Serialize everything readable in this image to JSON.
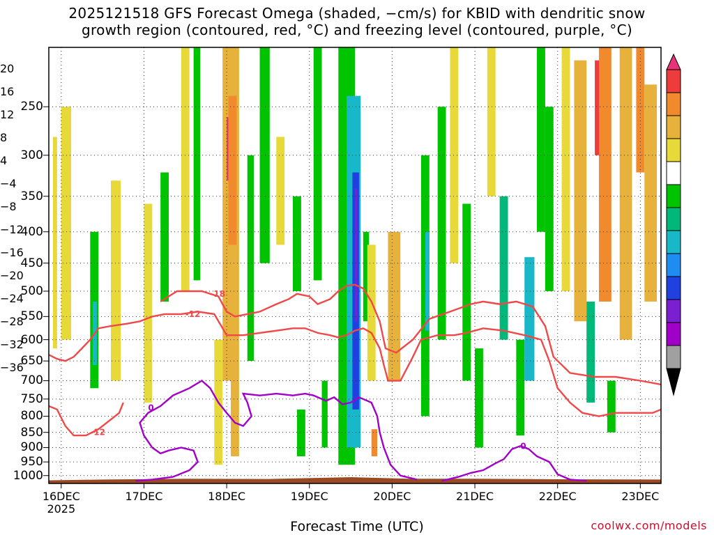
{
  "title_line1": "2025121518 GFS Forecast Omega (shaded, −cm/s) for KBID with dendritic snow",
  "title_line2": "growth region (contoured, red, °C) and freezing level (contoured, purple, °C)",
  "credit": "coolwx.com/models",
  "chart_data": {
    "type": "heatmap",
    "xlabel": "Forecast Time (UTC)",
    "x_ticks": [
      "16DEC",
      "17DEC",
      "18DEC",
      "19DEC",
      "20DEC",
      "21DEC",
      "22DEC",
      "23DEC"
    ],
    "x_year": "2025",
    "y_ticks": [
      250,
      300,
      350,
      400,
      450,
      500,
      550,
      600,
      650,
      700,
      750,
      800,
      850,
      900,
      950,
      1000
    ],
    "y_scale": "log-pressure, inverted",
    "y_range_hpa": [
      200,
      1030
    ],
    "x_range_days": [
      15.85,
      23.25
    ],
    "colorbar": {
      "labels": [
        "20",
        "16",
        "12",
        "8",
        "4",
        "−4",
        "−8",
        "−12",
        "−16",
        "−20",
        "−24",
        "−28",
        "−32",
        "−36"
      ],
      "bands": [
        {
          "min": 20,
          "max": 24,
          "color": "#e8337a"
        },
        {
          "min": 16,
          "max": 20,
          "color": "#ee3c3c"
        },
        {
          "min": 12,
          "max": 16,
          "color": "#f08a2c"
        },
        {
          "min": 8,
          "max": 12,
          "color": "#e6b23c"
        },
        {
          "min": 4,
          "max": 8,
          "color": "#e8d93a"
        },
        {
          "min": -4,
          "max": 4,
          "color": "#ffffff"
        },
        {
          "min": -8,
          "max": -4,
          "color": "#00c400"
        },
        {
          "min": -12,
          "max": -8,
          "color": "#00b87a"
        },
        {
          "min": -16,
          "max": -12,
          "color": "#18b8c8"
        },
        {
          "min": -20,
          "max": -16,
          "color": "#1e8cf0"
        },
        {
          "min": -24,
          "max": -20,
          "color": "#2040e0"
        },
        {
          "min": -28,
          "max": -24,
          "color": "#7a20d0"
        },
        {
          "min": -32,
          "max": -28,
          "color": "#a000c8"
        },
        {
          "min": -36,
          "max": -32,
          "color": "#a0a0a0"
        },
        {
          "min": -40,
          "max": -36,
          "color": "#000000"
        }
      ]
    },
    "omega_cells": [
      {
        "t0": 16.35,
        "t1": 16.45,
        "p0": 400,
        "p1": 720,
        "v": -8
      },
      {
        "t0": 16.38,
        "t1": 16.43,
        "p0": 520,
        "p1": 660,
        "v": -14
      },
      {
        "t0": 16.0,
        "t1": 16.12,
        "p0": 250,
        "p1": 600,
        "v": 6
      },
      {
        "t0": 15.9,
        "t1": 15.95,
        "p0": 280,
        "p1": 620,
        "v": 6
      },
      {
        "t0": 16.6,
        "t1": 16.72,
        "p0": 330,
        "p1": 700,
        "v": 7
      },
      {
        "t0": 17.0,
        "t1": 17.1,
        "p0": 360,
        "p1": 760,
        "v": 6
      },
      {
        "t0": 17.45,
        "t1": 17.55,
        "p0": 200,
        "p1": 500,
        "v": 6
      },
      {
        "t0": 17.2,
        "t1": 17.3,
        "p0": 320,
        "p1": 520,
        "v": -6
      },
      {
        "t0": 17.6,
        "t1": 17.68,
        "p0": 200,
        "p1": 480,
        "v": -6
      },
      {
        "t0": 17.95,
        "t1": 18.15,
        "p0": 200,
        "p1": 700,
        "v": 10
      },
      {
        "t0": 18.0,
        "t1": 18.08,
        "p0": 260,
        "p1": 330,
        "v": 22
      },
      {
        "t0": 18.02,
        "t1": 18.12,
        "p0": 240,
        "p1": 420,
        "v": 14
      },
      {
        "t0": 17.85,
        "t1": 17.95,
        "p0": 600,
        "p1": 960,
        "v": 6
      },
      {
        "t0": 18.05,
        "t1": 18.15,
        "p0": 700,
        "p1": 930,
        "v": 10
      },
      {
        "t0": 18.25,
        "t1": 18.33,
        "p0": 300,
        "p1": 650,
        "v": -6
      },
      {
        "t0": 18.4,
        "t1": 18.52,
        "p0": 200,
        "p1": 450,
        "v": -8
      },
      {
        "t0": 18.6,
        "t1": 18.7,
        "p0": 280,
        "p1": 420,
        "v": 6
      },
      {
        "t0": 18.8,
        "t1": 18.9,
        "p0": 350,
        "p1": 500,
        "v": -6
      },
      {
        "t0": 18.85,
        "t1": 18.95,
        "p0": 780,
        "p1": 930,
        "v": -6
      },
      {
        "t0": 19.05,
        "t1": 19.15,
        "p0": 200,
        "p1": 480,
        "v": -6
      },
      {
        "t0": 19.15,
        "t1": 19.22,
        "p0": 700,
        "p1": 900,
        "v": -6
      },
      {
        "t0": 19.35,
        "t1": 19.55,
        "p0": 200,
        "p1": 960,
        "v": -8
      },
      {
        "t0": 19.45,
        "t1": 19.62,
        "p0": 240,
        "p1": 900,
        "v": -14
      },
      {
        "t0": 19.52,
        "t1": 19.6,
        "p0": 320,
        "p1": 780,
        "v": -21
      },
      {
        "t0": 19.55,
        "t1": 19.58,
        "p0": 340,
        "p1": 560,
        "v": -26
      },
      {
        "t0": 19.65,
        "t1": 19.72,
        "p0": 400,
        "p1": 560,
        "v": -6
      },
      {
        "t0": 19.7,
        "t1": 19.8,
        "p0": 420,
        "p1": 700,
        "v": 6
      },
      {
        "t0": 19.75,
        "t1": 19.82,
        "p0": 840,
        "p1": 930,
        "v": 14
      },
      {
        "t0": 19.95,
        "t1": 20.1,
        "p0": 400,
        "p1": 700,
        "v": 10
      },
      {
        "t0": 20.35,
        "t1": 20.45,
        "p0": 300,
        "p1": 800,
        "v": -8
      },
      {
        "t0": 20.4,
        "t1": 20.45,
        "p0": 400,
        "p1": 580,
        "v": -14
      },
      {
        "t0": 20.55,
        "t1": 20.65,
        "p0": 250,
        "p1": 600,
        "v": -6
      },
      {
        "t0": 20.7,
        "t1": 20.8,
        "p0": 200,
        "p1": 450,
        "v": 6
      },
      {
        "t0": 20.85,
        "t1": 20.95,
        "p0": 360,
        "p1": 700,
        "v": -8
      },
      {
        "t0": 21.0,
        "t1": 21.1,
        "p0": 620,
        "p1": 900,
        "v": -8
      },
      {
        "t0": 21.15,
        "t1": 21.25,
        "p0": 200,
        "p1": 350,
        "v": 6
      },
      {
        "t0": 21.3,
        "t1": 21.4,
        "p0": 350,
        "p1": 600,
        "v": -10
      },
      {
        "t0": 21.5,
        "t1": 21.6,
        "p0": 600,
        "p1": 860,
        "v": -6
      },
      {
        "t0": 21.6,
        "t1": 21.72,
        "p0": 440,
        "p1": 700,
        "v": -14
      },
      {
        "t0": 21.75,
        "t1": 21.85,
        "p0": 200,
        "p1": 400,
        "v": -6
      },
      {
        "t0": 21.85,
        "t1": 21.95,
        "p0": 250,
        "p1": 500,
        "v": -6
      },
      {
        "t0": 22.05,
        "t1": 22.15,
        "p0": 200,
        "p1": 500,
        "v": 6
      },
      {
        "t0": 22.2,
        "t1": 22.35,
        "p0": 210,
        "p1": 560,
        "v": 10
      },
      {
        "t0": 22.35,
        "t1": 22.45,
        "p0": 520,
        "p1": 760,
        "v": -10
      },
      {
        "t0": 22.45,
        "t1": 22.55,
        "p0": 210,
        "p1": 300,
        "v": 18
      },
      {
        "t0": 22.5,
        "t1": 22.65,
        "p0": 200,
        "p1": 520,
        "v": 12
      },
      {
        "t0": 22.75,
        "t1": 22.9,
        "p0": 200,
        "p1": 600,
        "v": 10
      },
      {
        "t0": 22.95,
        "t1": 23.05,
        "p0": 200,
        "p1": 320,
        "v": 14
      },
      {
        "t0": 23.05,
        "t1": 23.2,
        "p0": 230,
        "p1": 520,
        "v": 8
      },
      {
        "t0": 22.6,
        "t1": 22.7,
        "p0": 700,
        "p1": 850,
        "v": -6
      }
    ],
    "contours": [
      {
        "label": "-18",
        "color": "#f04848",
        "label_at": [
          17.8,
          505
        ],
        "points": [
          [
            17.2,
            520
          ],
          [
            17.4,
            500
          ],
          [
            17.7,
            500
          ],
          [
            17.9,
            510
          ],
          [
            18.0,
            540
          ],
          [
            18.1,
            550
          ],
          [
            18.25,
            545
          ],
          [
            18.4,
            540
          ],
          [
            18.6,
            525
          ],
          [
            18.75,
            515
          ],
          [
            18.85,
            505
          ],
          [
            19.0,
            510
          ],
          [
            19.1,
            525
          ],
          [
            19.25,
            515
          ],
          [
            19.35,
            500
          ],
          [
            19.45,
            490
          ],
          [
            19.55,
            488
          ],
          [
            19.65,
            495
          ],
          [
            19.75,
            520
          ],
          [
            19.85,
            560
          ],
          [
            19.92,
            620
          ],
          [
            20.05,
            630
          ],
          [
            20.25,
            600
          ],
          [
            20.45,
            555
          ],
          [
            20.7,
            540
          ],
          [
            20.95,
            525
          ],
          [
            21.1,
            520
          ],
          [
            21.3,
            525
          ],
          [
            21.5,
            520
          ],
          [
            21.7,
            530
          ],
          [
            21.85,
            570
          ],
          [
            21.95,
            640
          ],
          [
            22.15,
            680
          ],
          [
            22.45,
            690
          ],
          [
            22.7,
            690
          ],
          [
            23.0,
            700
          ],
          [
            23.25,
            710
          ]
        ]
      },
      {
        "label": "-12",
        "color": "#f04848",
        "label_at": [
          17.5,
          545
        ],
        "points": [
          [
            15.85,
            635
          ],
          [
            15.95,
            645
          ],
          [
            16.05,
            650
          ],
          [
            16.15,
            640
          ],
          [
            16.25,
            620
          ],
          [
            16.35,
            600
          ],
          [
            16.45,
            575
          ],
          [
            16.6,
            570
          ],
          [
            16.8,
            565
          ],
          [
            16.95,
            560
          ],
          [
            17.1,
            550
          ],
          [
            17.25,
            545
          ],
          [
            17.45,
            545
          ],
          [
            17.65,
            540
          ],
          [
            17.85,
            545
          ],
          [
            18.0,
            590
          ],
          [
            18.2,
            590
          ],
          [
            18.4,
            585
          ],
          [
            18.6,
            580
          ],
          [
            18.8,
            575
          ],
          [
            18.95,
            575
          ],
          [
            19.1,
            585
          ],
          [
            19.25,
            590
          ],
          [
            19.35,
            595
          ],
          [
            19.45,
            590
          ],
          [
            19.55,
            580
          ],
          [
            19.65,
            575
          ],
          [
            19.75,
            585
          ],
          [
            19.85,
            620
          ],
          [
            19.9,
            660
          ],
          [
            19.95,
            700
          ],
          [
            20.1,
            700
          ],
          [
            20.25,
            640
          ],
          [
            20.35,
            600
          ],
          [
            20.55,
            590
          ],
          [
            20.75,
            590
          ],
          [
            20.9,
            585
          ],
          [
            21.1,
            575
          ],
          [
            21.35,
            580
          ],
          [
            21.6,
            590
          ],
          [
            21.8,
            600
          ],
          [
            21.9,
            650
          ],
          [
            22.0,
            720
          ],
          [
            22.15,
            760
          ],
          [
            22.3,
            790
          ],
          [
            22.5,
            800
          ],
          [
            22.7,
            790
          ],
          [
            22.95,
            790
          ],
          [
            23.15,
            790
          ],
          [
            23.25,
            780
          ]
        ]
      },
      {
        "label": "-12",
        "color": "#f04848",
        "label_at": [
          16.35,
          850
        ],
        "points": [
          [
            15.85,
            770
          ],
          [
            15.95,
            780
          ],
          [
            16.05,
            830
          ],
          [
            16.15,
            860
          ],
          [
            16.3,
            860
          ],
          [
            16.45,
            840
          ],
          [
            16.6,
            810
          ],
          [
            16.7,
            790
          ],
          [
            16.75,
            760
          ]
        ]
      },
      {
        "label": "0",
        "color": "#a000c8",
        "label_at": [
          17.05,
          775
        ],
        "points": [
          [
            16.9,
            1020
          ],
          [
            17.1,
            1015
          ],
          [
            17.35,
            1005
          ],
          [
            17.55,
            980
          ],
          [
            17.65,
            950
          ],
          [
            17.6,
            910
          ],
          [
            17.45,
            900
          ],
          [
            17.3,
            910
          ],
          [
            17.2,
            920
          ],
          [
            17.1,
            900
          ],
          [
            17.0,
            860
          ],
          [
            16.95,
            820
          ],
          [
            17.05,
            790
          ],
          [
            17.2,
            770
          ],
          [
            17.35,
            740
          ],
          [
            17.55,
            720
          ],
          [
            17.7,
            700
          ],
          [
            17.8,
            720
          ],
          [
            17.9,
            760
          ],
          [
            18.0,
            790
          ],
          [
            18.1,
            820
          ],
          [
            18.2,
            830
          ],
          [
            18.3,
            800
          ],
          [
            18.25,
            760
          ],
          [
            18.2,
            735
          ],
          [
            18.4,
            740
          ],
          [
            18.6,
            735
          ],
          [
            18.8,
            740
          ],
          [
            18.95,
            735
          ],
          [
            19.05,
            740
          ],
          [
            19.2,
            755
          ],
          [
            19.3,
            745
          ],
          [
            19.4,
            765
          ],
          [
            19.5,
            760
          ],
          [
            19.6,
            745
          ],
          [
            19.75,
            760
          ],
          [
            19.82,
            800
          ],
          [
            19.85,
            850
          ],
          [
            19.9,
            900
          ],
          [
            19.98,
            960
          ],
          [
            20.1,
            1000
          ],
          [
            20.3,
            1015
          ]
        ]
      },
      {
        "label": "0",
        "color": "#a000c8",
        "label_at": [
          21.55,
          895
        ],
        "points": [
          [
            20.6,
            1020
          ],
          [
            20.8,
            1005
          ],
          [
            20.95,
            990
          ],
          [
            21.1,
            980
          ],
          [
            21.25,
            955
          ],
          [
            21.35,
            940
          ],
          [
            21.45,
            905
          ],
          [
            21.55,
            895
          ],
          [
            21.65,
            905
          ],
          [
            21.75,
            930
          ],
          [
            21.9,
            950
          ],
          [
            22.0,
            995
          ],
          [
            22.15,
            1015
          ],
          [
            22.35,
            1020
          ]
        ]
      }
    ],
    "terrain_top_hpa": [
      [
        15.85,
        1018
      ],
      [
        16.5,
        1015
      ],
      [
        17.5,
        1012
      ],
      [
        18.5,
        1013
      ],
      [
        19.5,
        1006
      ],
      [
        20.2,
        1012
      ],
      [
        21.0,
        1012
      ],
      [
        22.0,
        1014
      ],
      [
        23.25,
        1015
      ]
    ]
  }
}
